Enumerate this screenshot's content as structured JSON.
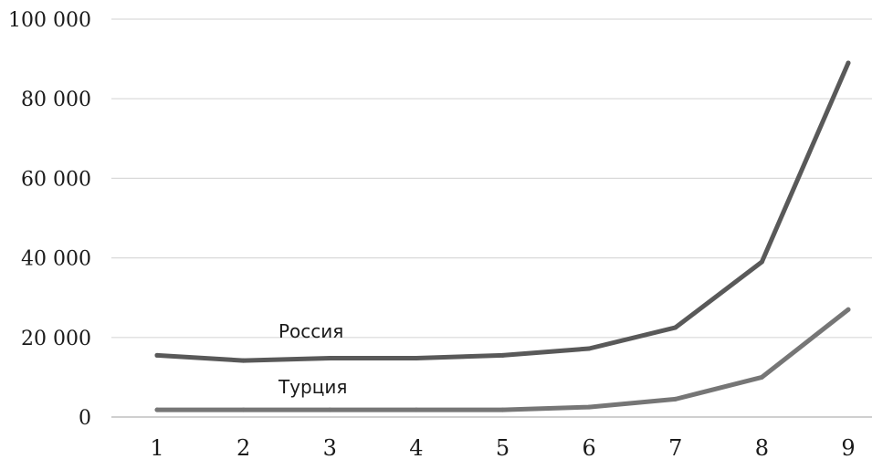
{
  "chart_data": {
    "type": "line",
    "x": [
      1,
      2,
      3,
      4,
      5,
      6,
      7,
      8,
      9
    ],
    "x_tick_labels": [
      "1",
      "2",
      "3",
      "4",
      "5",
      "6",
      "7",
      "8",
      "9"
    ],
    "y_ticks": [
      0,
      20000,
      40000,
      60000,
      80000,
      100000
    ],
    "y_tick_labels": [
      "0",
      "20 000",
      "40 000",
      "60 000",
      "80 000",
      "100 000"
    ],
    "ylim": [
      0,
      100000
    ],
    "grid": true,
    "legend": "none",
    "title": "",
    "xlabel": "",
    "ylabel": "",
    "series": [
      {
        "name": "Россия",
        "color": "#595959",
        "values": [
          15500,
          14200,
          14800,
          14800,
          15500,
          17200,
          22500,
          39000,
          89000
        ]
      },
      {
        "name": "Турция",
        "color": "#767676",
        "values": [
          1800,
          1800,
          1800,
          1800,
          1800,
          2500,
          4500,
          10000,
          27000
        ]
      }
    ]
  }
}
